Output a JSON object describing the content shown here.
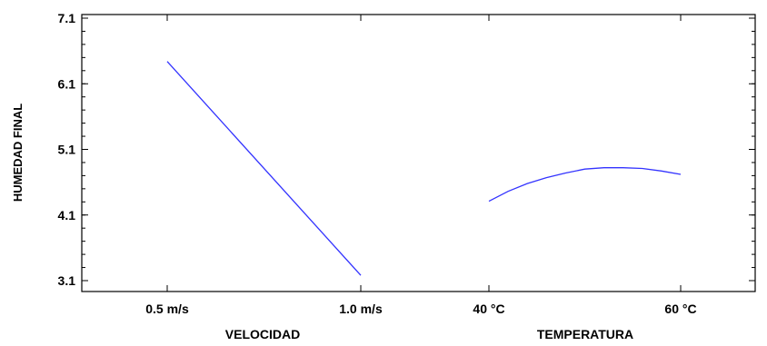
{
  "chart_data": {
    "type": "line",
    "ylabel": "HUMEDAD FINAL",
    "ylim": [
      3.1,
      7.1
    ],
    "yticks": [
      "7.1",
      "6.1",
      "5.1",
      "4.1",
      "3.1"
    ],
    "grid": false,
    "line_color": "#3333ff",
    "factors": [
      {
        "name": "VELOCIDAD",
        "tick_labels": [
          "0.5 m/s",
          "1.0 m/s"
        ],
        "x": [
          0.5,
          1.0
        ],
        "y": [
          6.44,
          3.18
        ]
      },
      {
        "name": "TEMPERATURA",
        "tick_labels": [
          "40 °C",
          "60 °C"
        ],
        "x": [
          40,
          42,
          44,
          46,
          48,
          50,
          52,
          54,
          56,
          58,
          60
        ],
        "y": [
          4.31,
          4.46,
          4.58,
          4.67,
          4.74,
          4.8,
          4.82,
          4.82,
          4.81,
          4.77,
          4.72
        ]
      }
    ]
  }
}
